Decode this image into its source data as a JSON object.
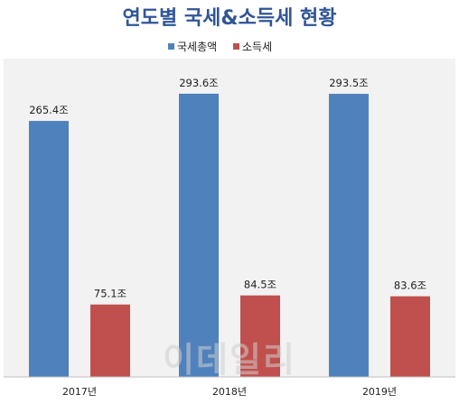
{
  "colors": {
    "title": "#2f5597",
    "panel": "#f2f2f2",
    "series": [
      "#4f81bd",
      "#c0504d"
    ]
  },
  "watermark": "이데일리",
  "chart_data": {
    "type": "bar",
    "title": "연도별 국세&소득세 현황",
    "categories": [
      "2017년",
      "2018년",
      "2019년"
    ],
    "series": [
      {
        "name": "국세총액",
        "values": [
          265.4,
          293.6,
          293.5
        ],
        "labels": [
          "265.4조",
          "293.6조",
          "293.5조"
        ]
      },
      {
        "name": "소득세",
        "values": [
          75.1,
          84.5,
          83.6
        ],
        "labels": [
          "75.1조",
          "84.5조",
          "83.6조"
        ]
      }
    ],
    "ylim": [
      0,
      330
    ],
    "grid": false,
    "legend": "top-center"
  }
}
